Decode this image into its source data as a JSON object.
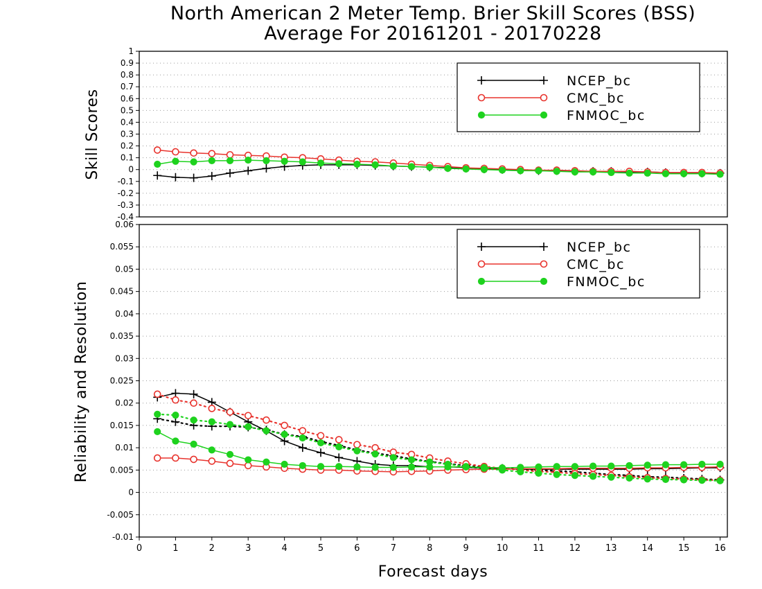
{
  "title": "North American 2 Meter Temp. Brier Skill Scores (BSS)",
  "subtitle": "Average For 20161201 - 20170228",
  "chart_data": [
    {
      "type": "line",
      "ylabel": "Skill Scores",
      "xlabel": "",
      "xlim": [
        0,
        16.2
      ],
      "ylim": [
        -0.4,
        1
      ],
      "yticks": [
        "1",
        "0.9",
        "0.8",
        "0.7",
        "0.6",
        "0.5",
        "0.4",
        "0.3",
        "0.2",
        "0.1",
        "0",
        "-0.1",
        "-0.2",
        "-0.3",
        "-0.4"
      ],
      "grid": true,
      "legend": "top-right",
      "x": [
        0.5,
        1,
        1.5,
        2,
        2.5,
        3,
        3.5,
        4,
        4.5,
        5,
        5.5,
        6,
        6.5,
        7,
        7.5,
        8,
        8.5,
        9,
        9.5,
        10,
        10.5,
        11,
        11.5,
        12,
        12.5,
        13,
        13.5,
        14,
        14.5,
        15,
        15.5,
        16
      ],
      "series": [
        {
          "name": "NCEP_bc",
          "color": "#000000",
          "marker": "plus",
          "style": "solid",
          "values": [
            -0.05,
            -0.065,
            -0.07,
            -0.055,
            -0.03,
            -0.01,
            0.01,
            0.025,
            0.035,
            0.04,
            0.04,
            0.04,
            0.035,
            0.03,
            0.025,
            0.02,
            0.015,
            0.01,
            0.005,
            0.0,
            -0.005,
            -0.01,
            -0.01,
            -0.015,
            -0.015,
            -0.015,
            -0.02,
            -0.02,
            -0.025,
            -0.03,
            -0.03,
            -0.03
          ]
        },
        {
          "name": "CMC_bc",
          "color": "#e8332d",
          "marker": "open-circle",
          "style": "solid",
          "values": [
            0.165,
            0.15,
            0.14,
            0.135,
            0.125,
            0.12,
            0.115,
            0.105,
            0.1,
            0.09,
            0.08,
            0.07,
            0.065,
            0.055,
            0.045,
            0.035,
            0.025,
            0.015,
            0.01,
            0.005,
            0.0,
            -0.005,
            -0.005,
            -0.01,
            -0.015,
            -0.015,
            -0.015,
            -0.02,
            -0.025,
            -0.025,
            -0.025,
            -0.03
          ]
        },
        {
          "name": "FNMOC_bc",
          "color": "#1ed21e",
          "marker": "filled-circle",
          "style": "solid",
          "values": [
            0.045,
            0.07,
            0.065,
            0.075,
            0.075,
            0.08,
            0.075,
            0.07,
            0.065,
            0.055,
            0.05,
            0.045,
            0.04,
            0.03,
            0.025,
            0.02,
            0.01,
            0.005,
            0.0,
            -0.005,
            -0.01,
            -0.01,
            -0.015,
            -0.02,
            -0.02,
            -0.025,
            -0.03,
            -0.03,
            -0.035,
            -0.035,
            -0.035,
            -0.04
          ]
        }
      ]
    },
    {
      "type": "line",
      "ylabel": "Reliability and Resolution",
      "xlabel": "Forecast days",
      "xlim": [
        0,
        16.2
      ],
      "ylim": [
        -0.01,
        0.06
      ],
      "xticks": [
        "0",
        "1",
        "2",
        "3",
        "4",
        "5",
        "6",
        "7",
        "8",
        "9",
        "10",
        "11",
        "12",
        "13",
        "14",
        "15",
        "16"
      ],
      "yticks": [
        "0.06",
        "0.055",
        "0.05",
        "0.045",
        "0.04",
        "0.035",
        "0.03",
        "0.025",
        "0.02",
        "0.015",
        "0.01",
        "0.005",
        "0",
        "-0.005",
        "-0.01"
      ],
      "grid": true,
      "legend": "top-right",
      "legend_entries": [
        "NCEP_bc",
        "CMC_bc",
        "FNMOC_bc"
      ],
      "x": [
        0.5,
        1,
        1.5,
        2,
        2.5,
        3,
        3.5,
        4,
        4.5,
        5,
        5.5,
        6,
        6.5,
        7,
        7.5,
        8,
        8.5,
        9,
        9.5,
        10,
        10.5,
        11,
        11.5,
        12,
        12.5,
        13,
        13.5,
        14,
        14.5,
        15,
        15.5,
        16
      ],
      "series": [
        {
          "name": "NCEP_bc",
          "color": "#000000",
          "marker": "plus",
          "style": "solid",
          "values": [
            0.0213,
            0.0222,
            0.022,
            0.0202,
            0.018,
            0.0158,
            0.0138,
            0.0115,
            0.01,
            0.0089,
            0.0078,
            0.007,
            0.0063,
            0.006,
            0.006,
            0.0057,
            0.0057,
            0.0056,
            0.0054,
            0.0053,
            0.0052,
            0.0052,
            0.0052,
            0.0052,
            0.0052,
            0.0052,
            0.0052,
            0.0053,
            0.0053,
            0.0054,
            0.0055,
            0.0055
          ]
        },
        {
          "name": "NCEP_bc",
          "color": "#000000",
          "marker": "plus",
          "style": "dotted",
          "values": [
            0.0165,
            0.0158,
            0.015,
            0.0148,
            0.0148,
            0.0146,
            0.014,
            0.013,
            0.0125,
            0.0114,
            0.0105,
            0.0095,
            0.0088,
            0.0082,
            0.0075,
            0.0069,
            0.0064,
            0.006,
            0.0056,
            0.0054,
            0.0052,
            0.005,
            0.0048,
            0.0046,
            0.0043,
            0.004,
            0.0038,
            0.0035,
            0.0034,
            0.0032,
            0.003,
            0.0028
          ]
        },
        {
          "name": "CMC_bc",
          "color": "#e8332d",
          "marker": "open-circle",
          "style": "solid",
          "values": [
            0.0077,
            0.0077,
            0.0074,
            0.007,
            0.0065,
            0.006,
            0.0057,
            0.0054,
            0.0052,
            0.005,
            0.005,
            0.0048,
            0.0047,
            0.0046,
            0.0047,
            0.0048,
            0.005,
            0.0051,
            0.0052,
            0.0052,
            0.0053,
            0.0053,
            0.0053,
            0.0054,
            0.0054,
            0.0054,
            0.0054,
            0.0055,
            0.0055,
            0.0056,
            0.0056,
            0.0057
          ]
        },
        {
          "name": "CMC_bc",
          "color": "#e8332d",
          "marker": "open-circle",
          "style": "dotted",
          "values": [
            0.022,
            0.0207,
            0.02,
            0.0188,
            0.018,
            0.0172,
            0.0162,
            0.015,
            0.0138,
            0.0127,
            0.0118,
            0.0107,
            0.01,
            0.009,
            0.0085,
            0.0077,
            0.007,
            0.0064,
            0.0058,
            0.0054,
            0.005,
            0.0047,
            0.0045,
            0.0042,
            0.004,
            0.0038,
            0.0035,
            0.0033,
            0.0031,
            0.003,
            0.0028,
            0.0027
          ]
        },
        {
          "name": "FNMOC_bc",
          "color": "#1ed21e",
          "marker": "filled-circle",
          "style": "solid",
          "values": [
            0.0136,
            0.0115,
            0.0108,
            0.0095,
            0.0085,
            0.0073,
            0.0068,
            0.0063,
            0.006,
            0.0058,
            0.0058,
            0.0057,
            0.0056,
            0.0056,
            0.0057,
            0.0057,
            0.0057,
            0.0057,
            0.0056,
            0.0055,
            0.0056,
            0.0057,
            0.0058,
            0.0058,
            0.0059,
            0.0059,
            0.006,
            0.0061,
            0.0062,
            0.0062,
            0.0063,
            0.0063
          ]
        },
        {
          "name": "FNMOC_bc",
          "color": "#1ed21e",
          "marker": "filled-circle",
          "style": "dotted",
          "values": [
            0.0175,
            0.0173,
            0.0162,
            0.0158,
            0.0152,
            0.0147,
            0.0138,
            0.013,
            0.0122,
            0.0111,
            0.0102,
            0.0093,
            0.0086,
            0.0078,
            0.0073,
            0.0068,
            0.0063,
            0.0058,
            0.0054,
            0.005,
            0.0046,
            0.0043,
            0.004,
            0.0038,
            0.0036,
            0.0034,
            0.0032,
            0.003,
            0.0029,
            0.0028,
            0.0027,
            0.0026
          ]
        }
      ]
    }
  ]
}
